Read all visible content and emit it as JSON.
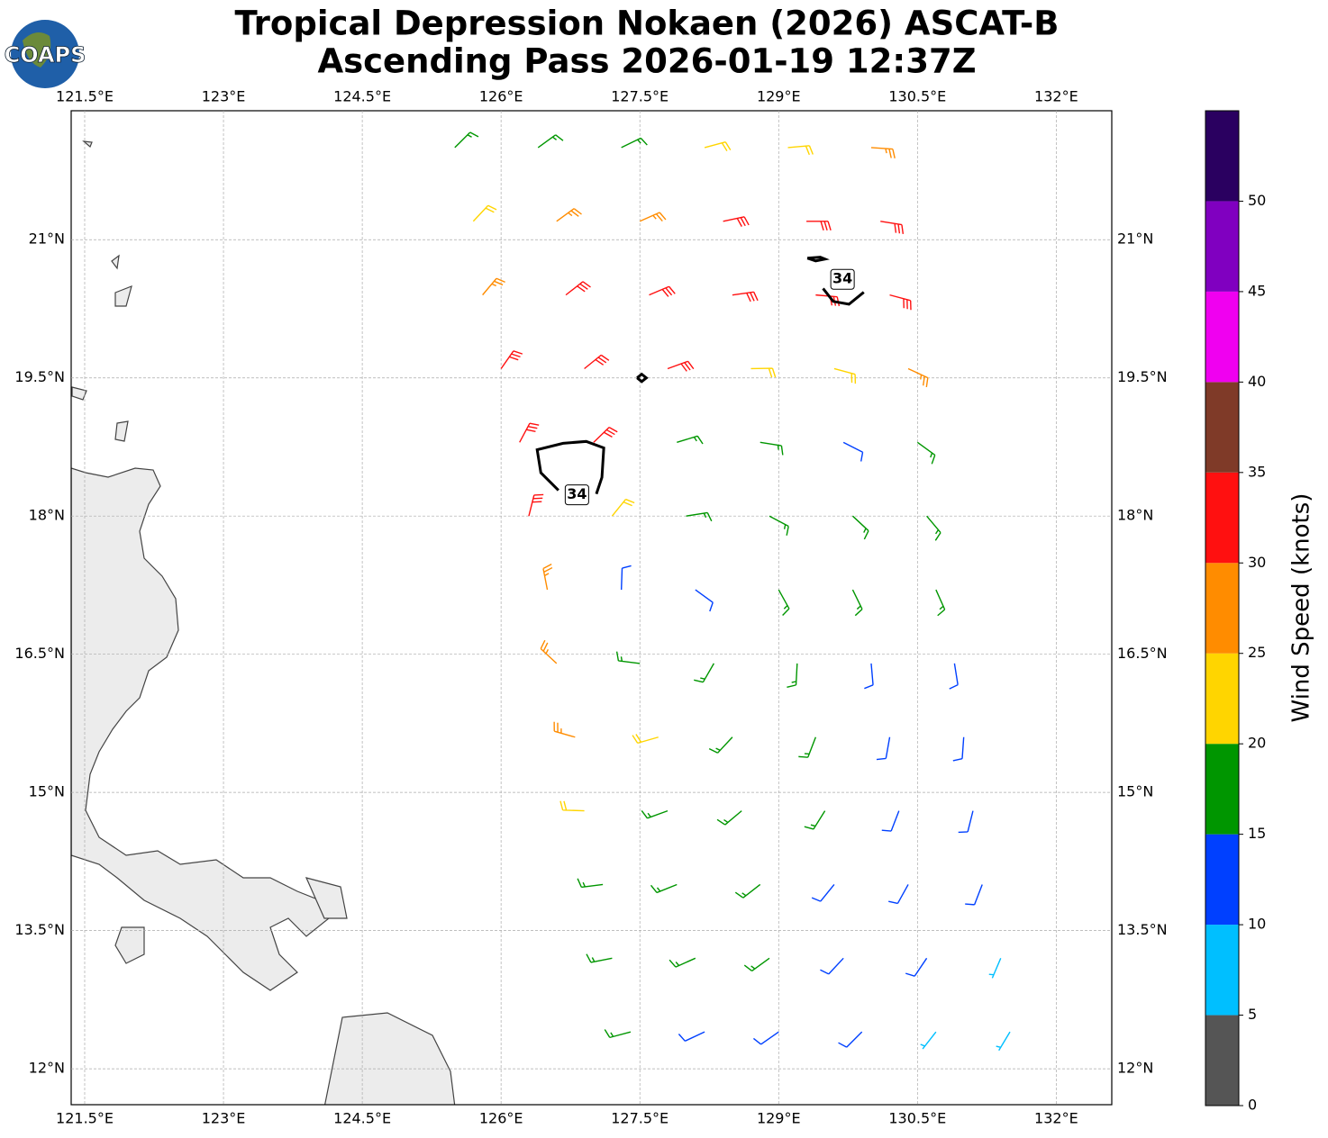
{
  "header": {
    "logo": "COAPS",
    "title": "Tropical Depression Nokaen (2026) ASCAT-B",
    "subtitle": "Ascending Pass 2026-01-19 12:37Z"
  },
  "map": {
    "xlim": [
      121.354,
      132.6
    ],
    "ylim": [
      11.61,
      22.4
    ],
    "grid": true,
    "xticks": [
      {
        "value": 121.5,
        "label": "121.5°E"
      },
      {
        "value": 123,
        "label": "123°E"
      },
      {
        "value": 124.5,
        "label": "124.5°E"
      },
      {
        "value": 126,
        "label": "126°E"
      },
      {
        "value": 127.5,
        "label": "127.5°E"
      },
      {
        "value": 129,
        "label": "129°E"
      },
      {
        "value": 130.5,
        "label": "130.5°E"
      },
      {
        "value": 132,
        "label": "132°E"
      }
    ],
    "yticks": [
      {
        "value": 12,
        "label": "12°N"
      },
      {
        "value": 13.5,
        "label": "13.5°N"
      },
      {
        "value": 15,
        "label": "15°N"
      },
      {
        "value": 16.5,
        "label": "16.5°N"
      },
      {
        "value": 18,
        "label": "18°N"
      },
      {
        "value": 19.5,
        "label": "19.5°N"
      },
      {
        "value": 21,
        "label": "21°N"
      }
    ]
  },
  "wind": {
    "lon": [
      125.5,
      126.4,
      127.3,
      128.2,
      129.1,
      130.0,
      125.7,
      126.6,
      127.5,
      128.4,
      129.3,
      130.1,
      125.8,
      126.7,
      127.6,
      128.5,
      129.4,
      130.2,
      126.0,
      126.9,
      127.8,
      128.7,
      129.6,
      130.4,
      126.2,
      127.0,
      127.9,
      128.8,
      129.7,
      130.5,
      126.3,
      127.2,
      128.0,
      128.9,
      129.8,
      130.6,
      126.5,
      127.3,
      128.1,
      129.0,
      129.8,
      130.7,
      126.6,
      127.5,
      128.3,
      129.2,
      130.0,
      130.9,
      126.8,
      127.7,
      128.5,
      129.4,
      130.2,
      131.0,
      126.9,
      127.8,
      128.6,
      129.5,
      130.3,
      131.1,
      127.1,
      127.9,
      128.8,
      129.6,
      130.4,
      131.2,
      127.2,
      128.1,
      128.9,
      129.7,
      130.6,
      131.4,
      127.4,
      128.2,
      129.0,
      129.9,
      130.7,
      131.5
    ],
    "lat": [
      22.0,
      22.0,
      22.0,
      22.0,
      22.0,
      22.0,
      21.2,
      21.2,
      21.2,
      21.2,
      21.2,
      21.2,
      20.4,
      20.4,
      20.4,
      20.4,
      20.4,
      20.4,
      19.6,
      19.6,
      19.6,
      19.6,
      19.6,
      19.6,
      18.8,
      18.8,
      18.8,
      18.8,
      18.8,
      18.8,
      18.0,
      18.0,
      18.0,
      18.0,
      18.0,
      18.0,
      17.2,
      17.2,
      17.2,
      17.2,
      17.2,
      17.2,
      16.4,
      16.4,
      16.4,
      16.4,
      16.4,
      16.4,
      15.6,
      15.6,
      15.6,
      15.6,
      15.6,
      15.6,
      14.8,
      14.8,
      14.8,
      14.8,
      14.8,
      14.8,
      14.0,
      14.0,
      14.0,
      14.0,
      14.0,
      14.0,
      13.2,
      13.2,
      13.2,
      13.2,
      13.2,
      13.2,
      12.4,
      12.4,
      12.4,
      12.4,
      12.4,
      12.4
    ],
    "speed": [
      18,
      17,
      17,
      22,
      24,
      26,
      22,
      26,
      28,
      30,
      32,
      33,
      28,
      31,
      32,
      33,
      33,
      32,
      31,
      32,
      31,
      22,
      22,
      27,
      33,
      34,
      17,
      15,
      13,
      18,
      32,
      24,
      16,
      17,
      16,
      18,
      29,
      11,
      12,
      16,
      17,
      15,
      27,
      15,
      18,
      17,
      13,
      12,
      25,
      22,
      19,
      17,
      13,
      12,
      22,
      19,
      17,
      16,
      13,
      12,
      18,
      17,
      17,
      14,
      12,
      11,
      17,
      17,
      15,
      13,
      12,
      8,
      16,
      14,
      12,
      11,
      9,
      8
    ],
    "direction": [
      45,
      54,
      64,
      75,
      85,
      94,
      43,
      54,
      66,
      78,
      90,
      99,
      40,
      52,
      67,
      82,
      95,
      105,
      35,
      51,
      70,
      89,
      105,
      115,
      28,
      46,
      73,
      99,
      117,
      126,
      14,
      39,
      81,
      118,
      133,
      140,
      349,
      2,
      126,
      151,
      154,
      156,
      313,
      277,
      210,
      183,
      175,
      171,
      286,
      254,
      223,
      201,
      190,
      184,
      272,
      250,
      230,
      212,
      201,
      194,
      263,
      248,
      232,
      219,
      209,
      201,
      259,
      246,
      234,
      223,
      214,
      203,
      255,
      245,
      235,
      225,
      218,
      211
    ]
  },
  "contours": [
    {
      "level": 34,
      "lon": [
        126.62,
        126.43,
        126.39,
        126.67,
        126.92,
        127.11,
        127.09,
        127.03
      ],
      "lat": [
        18.28,
        18.47,
        18.72,
        18.79,
        18.81,
        18.74,
        18.42,
        18.24
      ]
    },
    {
      "level": 34,
      "lon": [
        129.48,
        129.59,
        129.76,
        129.92
      ],
      "lat": [
        20.47,
        20.33,
        20.3,
        20.43
      ]
    },
    {
      "level": 34,
      "lon": [
        129.31,
        129.45,
        129.5,
        129.4,
        129.31
      ],
      "lat": [
        20.8,
        20.81,
        20.79,
        20.77,
        20.8
      ]
    },
    {
      "level": 34,
      "lon": [
        127.47,
        127.52,
        127.57,
        127.52,
        127.47
      ],
      "lat": [
        19.5,
        19.54,
        19.5,
        19.46,
        19.5
      ]
    }
  ],
  "contour_labels": [
    {
      "value": 34,
      "lon": 126.82,
      "lat": 18.23
    },
    {
      "value": 34,
      "lon": 129.69,
      "lat": 20.57
    }
  ],
  "colorbar": {
    "label": "Wind Speed (knots)",
    "levels": [
      0,
      5,
      10,
      15,
      20,
      25,
      30,
      35,
      40,
      45,
      50,
      55
    ],
    "colors": [
      "#555555",
      "#00bfff",
      "#0040ff",
      "#009600",
      "#ffd500",
      "#ff8c00",
      "#ff1010",
      "#7f3a28",
      "#f000f0",
      "#8000c0",
      "#2a0060"
    ],
    "ticks": [
      0,
      5,
      10,
      15,
      20,
      25,
      30,
      35,
      40,
      45,
      50
    ]
  }
}
